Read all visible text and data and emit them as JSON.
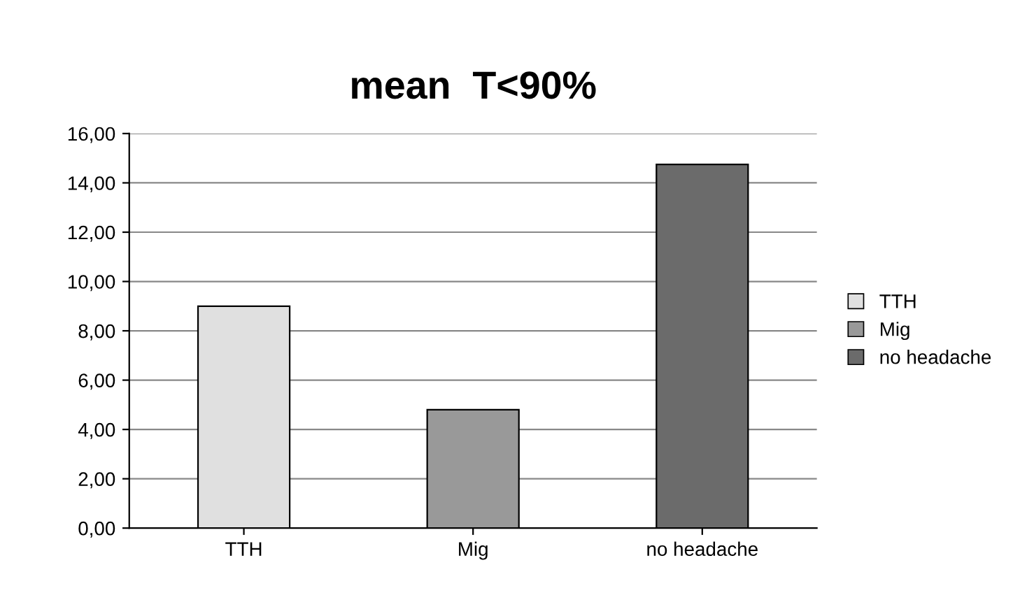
{
  "chart_data": {
    "type": "bar",
    "title": "mean  T<90%",
    "categories": [
      "TTH",
      "Mig",
      "no headache"
    ],
    "series": [
      {
        "name": "TTH",
        "color": "#e0e0e0",
        "values": [
          9.0,
          null,
          null
        ]
      },
      {
        "name": "Mig",
        "color": "#999999",
        "values": [
          null,
          4.8,
          null
        ]
      },
      {
        "name": "no headache",
        "color": "#6b6b6b",
        "values": [
          null,
          null,
          14.75
        ]
      }
    ],
    "ylim": [
      0,
      16
    ],
    "yticks": [
      {
        "value": 0,
        "label": "0,00"
      },
      {
        "value": 2,
        "label": "2,00"
      },
      {
        "value": 4,
        "label": "4,00"
      },
      {
        "value": 6,
        "label": "6,00"
      },
      {
        "value": 8,
        "label": "8,00"
      },
      {
        "value": 10,
        "label": "10,00"
      },
      {
        "value": 12,
        "label": "12,00"
      },
      {
        "value": 14,
        "label": "14,00"
      },
      {
        "value": 16,
        "label": "16,00"
      }
    ],
    "grid": "y",
    "legend": "right"
  }
}
